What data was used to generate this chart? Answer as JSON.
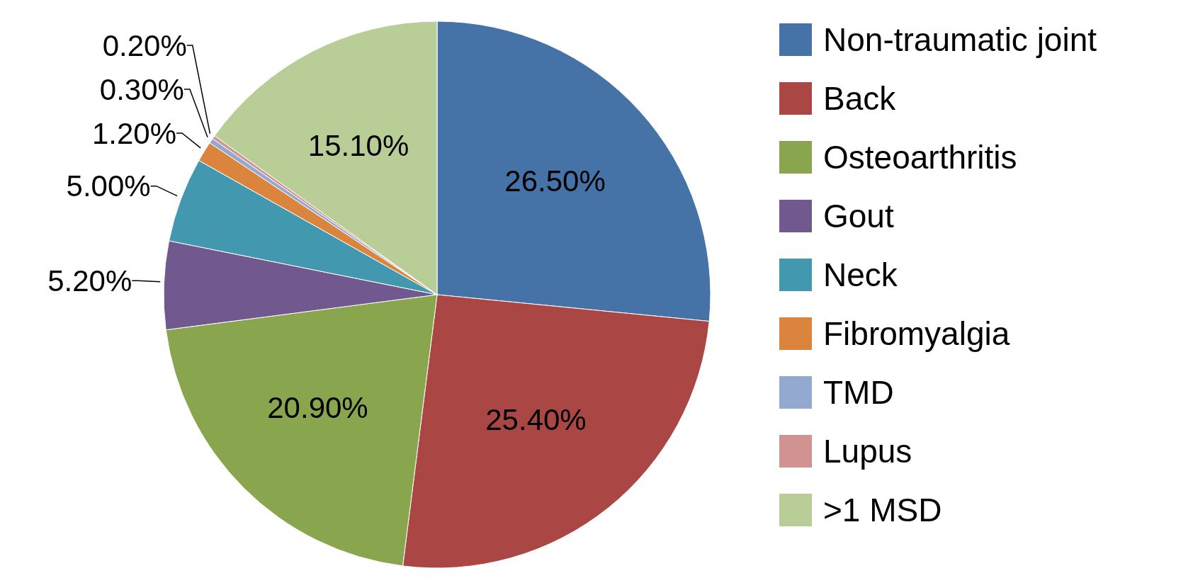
{
  "chart_data": {
    "type": "pie",
    "categories": [
      "Non-traumatic joint",
      "Back",
      "Osteoarthritis",
      "Gout",
      "Neck",
      "Fibromyalgia",
      "TMD",
      "Lupus",
      ">1 MSD"
    ],
    "values": [
      26.5,
      25.4,
      20.9,
      5.2,
      5.0,
      1.2,
      0.3,
      0.2,
      15.1
    ],
    "value_labels": [
      "26.50%",
      "25.40%",
      "20.90%",
      "5.20%",
      "5.00%",
      "1.20%",
      "0.30%",
      "0.20%",
      "15.10%"
    ],
    "colors": [
      "#4572a7",
      "#aa4643",
      "#89a54e",
      "#71588f",
      "#4198af",
      "#db843d",
      "#93a9cf",
      "#d19392",
      "#b9cd96"
    ],
    "legend": "right"
  }
}
